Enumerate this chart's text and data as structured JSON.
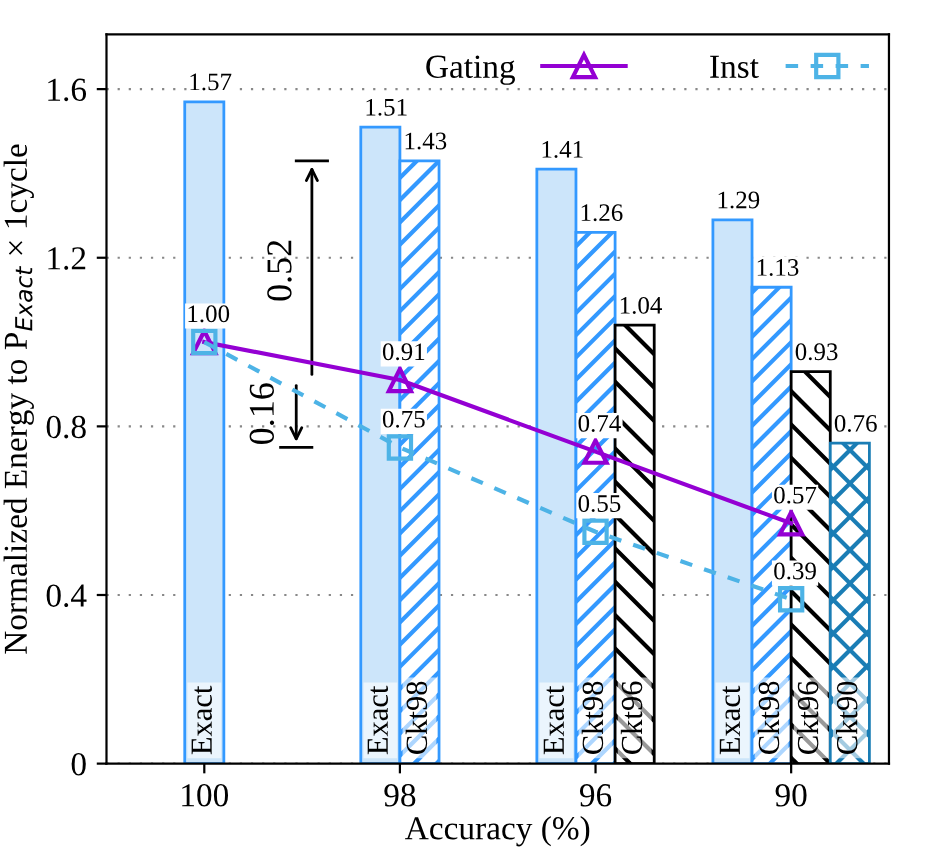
{
  "chart_data": {
    "type": "bar",
    "xlabel": "Accuracy (%)",
    "ylabel": "Normalized Energy to P$_{Exact}$ × 1cycle",
    "categories": [
      "100",
      "98",
      "96",
      "90"
    ],
    "series": [
      {
        "name": "Exact",
        "color": "#cce5fa",
        "values": [
          1.57,
          1.51,
          1.41,
          1.29
        ]
      },
      {
        "name": "Ckt98",
        "color": "#3399ff",
        "values": [
          null,
          1.43,
          1.26,
          1.13
        ]
      },
      {
        "name": "Ckt96",
        "color": "#000000",
        "values": [
          null,
          null,
          1.04,
          0.93
        ]
      },
      {
        "name": "Ckt90",
        "color": "#1a7db5",
        "values": [
          null,
          null,
          null,
          0.76
        ]
      },
      {
        "name": "Gating",
        "type": "line",
        "color": "#9400d3",
        "marker": "triangle",
        "line_style": "solid",
        "values": [
          1.0,
          0.91,
          0.74,
          0.57
        ],
        "value_labels": [
          "1.00",
          "0.91",
          "0.74",
          "0.57"
        ]
      },
      {
        "name": "Inst",
        "type": "line",
        "color": "#4db3e6",
        "marker": "square",
        "line_style": "dashed",
        "values": [
          1.0,
          0.75,
          0.55,
          0.39
        ],
        "value_labels": [
          null,
          "0.75",
          "0.55",
          "0.39"
        ]
      }
    ],
    "annotations": [
      "0.52",
      "0.16"
    ],
    "ylim": [
      0,
      1.73
    ],
    "yticks": [
      0,
      0.4,
      0.8,
      1.2,
      1.6
    ],
    "grid": "y",
    "legend": "top right",
    "data_labels": true
  }
}
